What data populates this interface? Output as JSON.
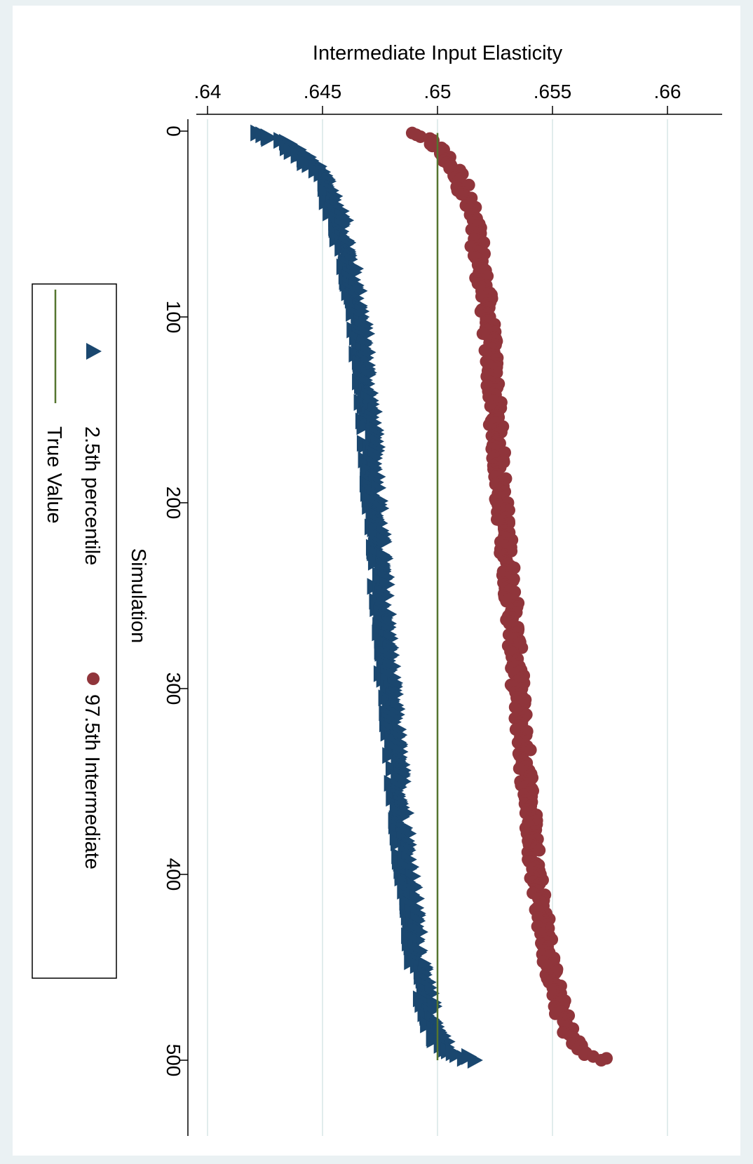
{
  "chart_data": {
    "type": "scatter",
    "title": "",
    "xlabel": "Simulation",
    "ylabel": "Intermediate Input Elasticity",
    "xlim": [
      0,
      500
    ],
    "ylim": [
      0.64,
      0.66
    ],
    "x_ticks": [
      0,
      100,
      200,
      300,
      400,
      500
    ],
    "x_tick_labels": [
      "0",
      "100",
      "200",
      "300",
      "400",
      "500"
    ],
    "y_ticks": [
      0.64,
      0.645,
      0.65,
      0.655,
      0.66
    ],
    "y_tick_labels": [
      ".64",
      ".645",
      ".65",
      ".655",
      ".66"
    ],
    "grid": "horizontal lines at y ticks",
    "orientation": "rotated 90° clockwise",
    "legend_placement": "bottom",
    "true_value": 0.65,
    "series": [
      {
        "name": "2.5th percentile",
        "marker": "triangle",
        "color": "#1a476f",
        "anchors": [
          [
            1,
            0.6422
          ],
          [
            6,
            0.6433
          ],
          [
            12,
            0.644
          ],
          [
            25,
            0.6451
          ],
          [
            50,
            0.6458
          ],
          [
            75,
            0.6462
          ],
          [
            100,
            0.6466
          ],
          [
            150,
            0.647
          ],
          [
            200,
            0.6473
          ],
          [
            250,
            0.6476
          ],
          [
            300,
            0.6479
          ],
          [
            350,
            0.6483
          ],
          [
            400,
            0.6487
          ],
          [
            450,
            0.6492
          ],
          [
            480,
            0.6498
          ],
          [
            495,
            0.6504
          ],
          [
            500,
            0.6516
          ]
        ]
      },
      {
        "name": "97.5th Intermediate",
        "marker": "circle",
        "color": "#90353b",
        "anchors": [
          [
            1,
            0.6489
          ],
          [
            6,
            0.6498
          ],
          [
            12,
            0.6502
          ],
          [
            25,
            0.651
          ],
          [
            50,
            0.6516
          ],
          [
            75,
            0.6519
          ],
          [
            100,
            0.6522
          ],
          [
            150,
            0.6525
          ],
          [
            200,
            0.6528
          ],
          [
            250,
            0.6532
          ],
          [
            300,
            0.6535
          ],
          [
            350,
            0.6539
          ],
          [
            400,
            0.6543
          ],
          [
            450,
            0.6549
          ],
          [
            480,
            0.6555
          ],
          [
            495,
            0.6562
          ],
          [
            500,
            0.6573
          ]
        ]
      },
      {
        "name": "True Value",
        "marker": "line",
        "color": "#55752f",
        "x_range": [
          1,
          500
        ],
        "value": 0.65
      }
    ]
  }
}
